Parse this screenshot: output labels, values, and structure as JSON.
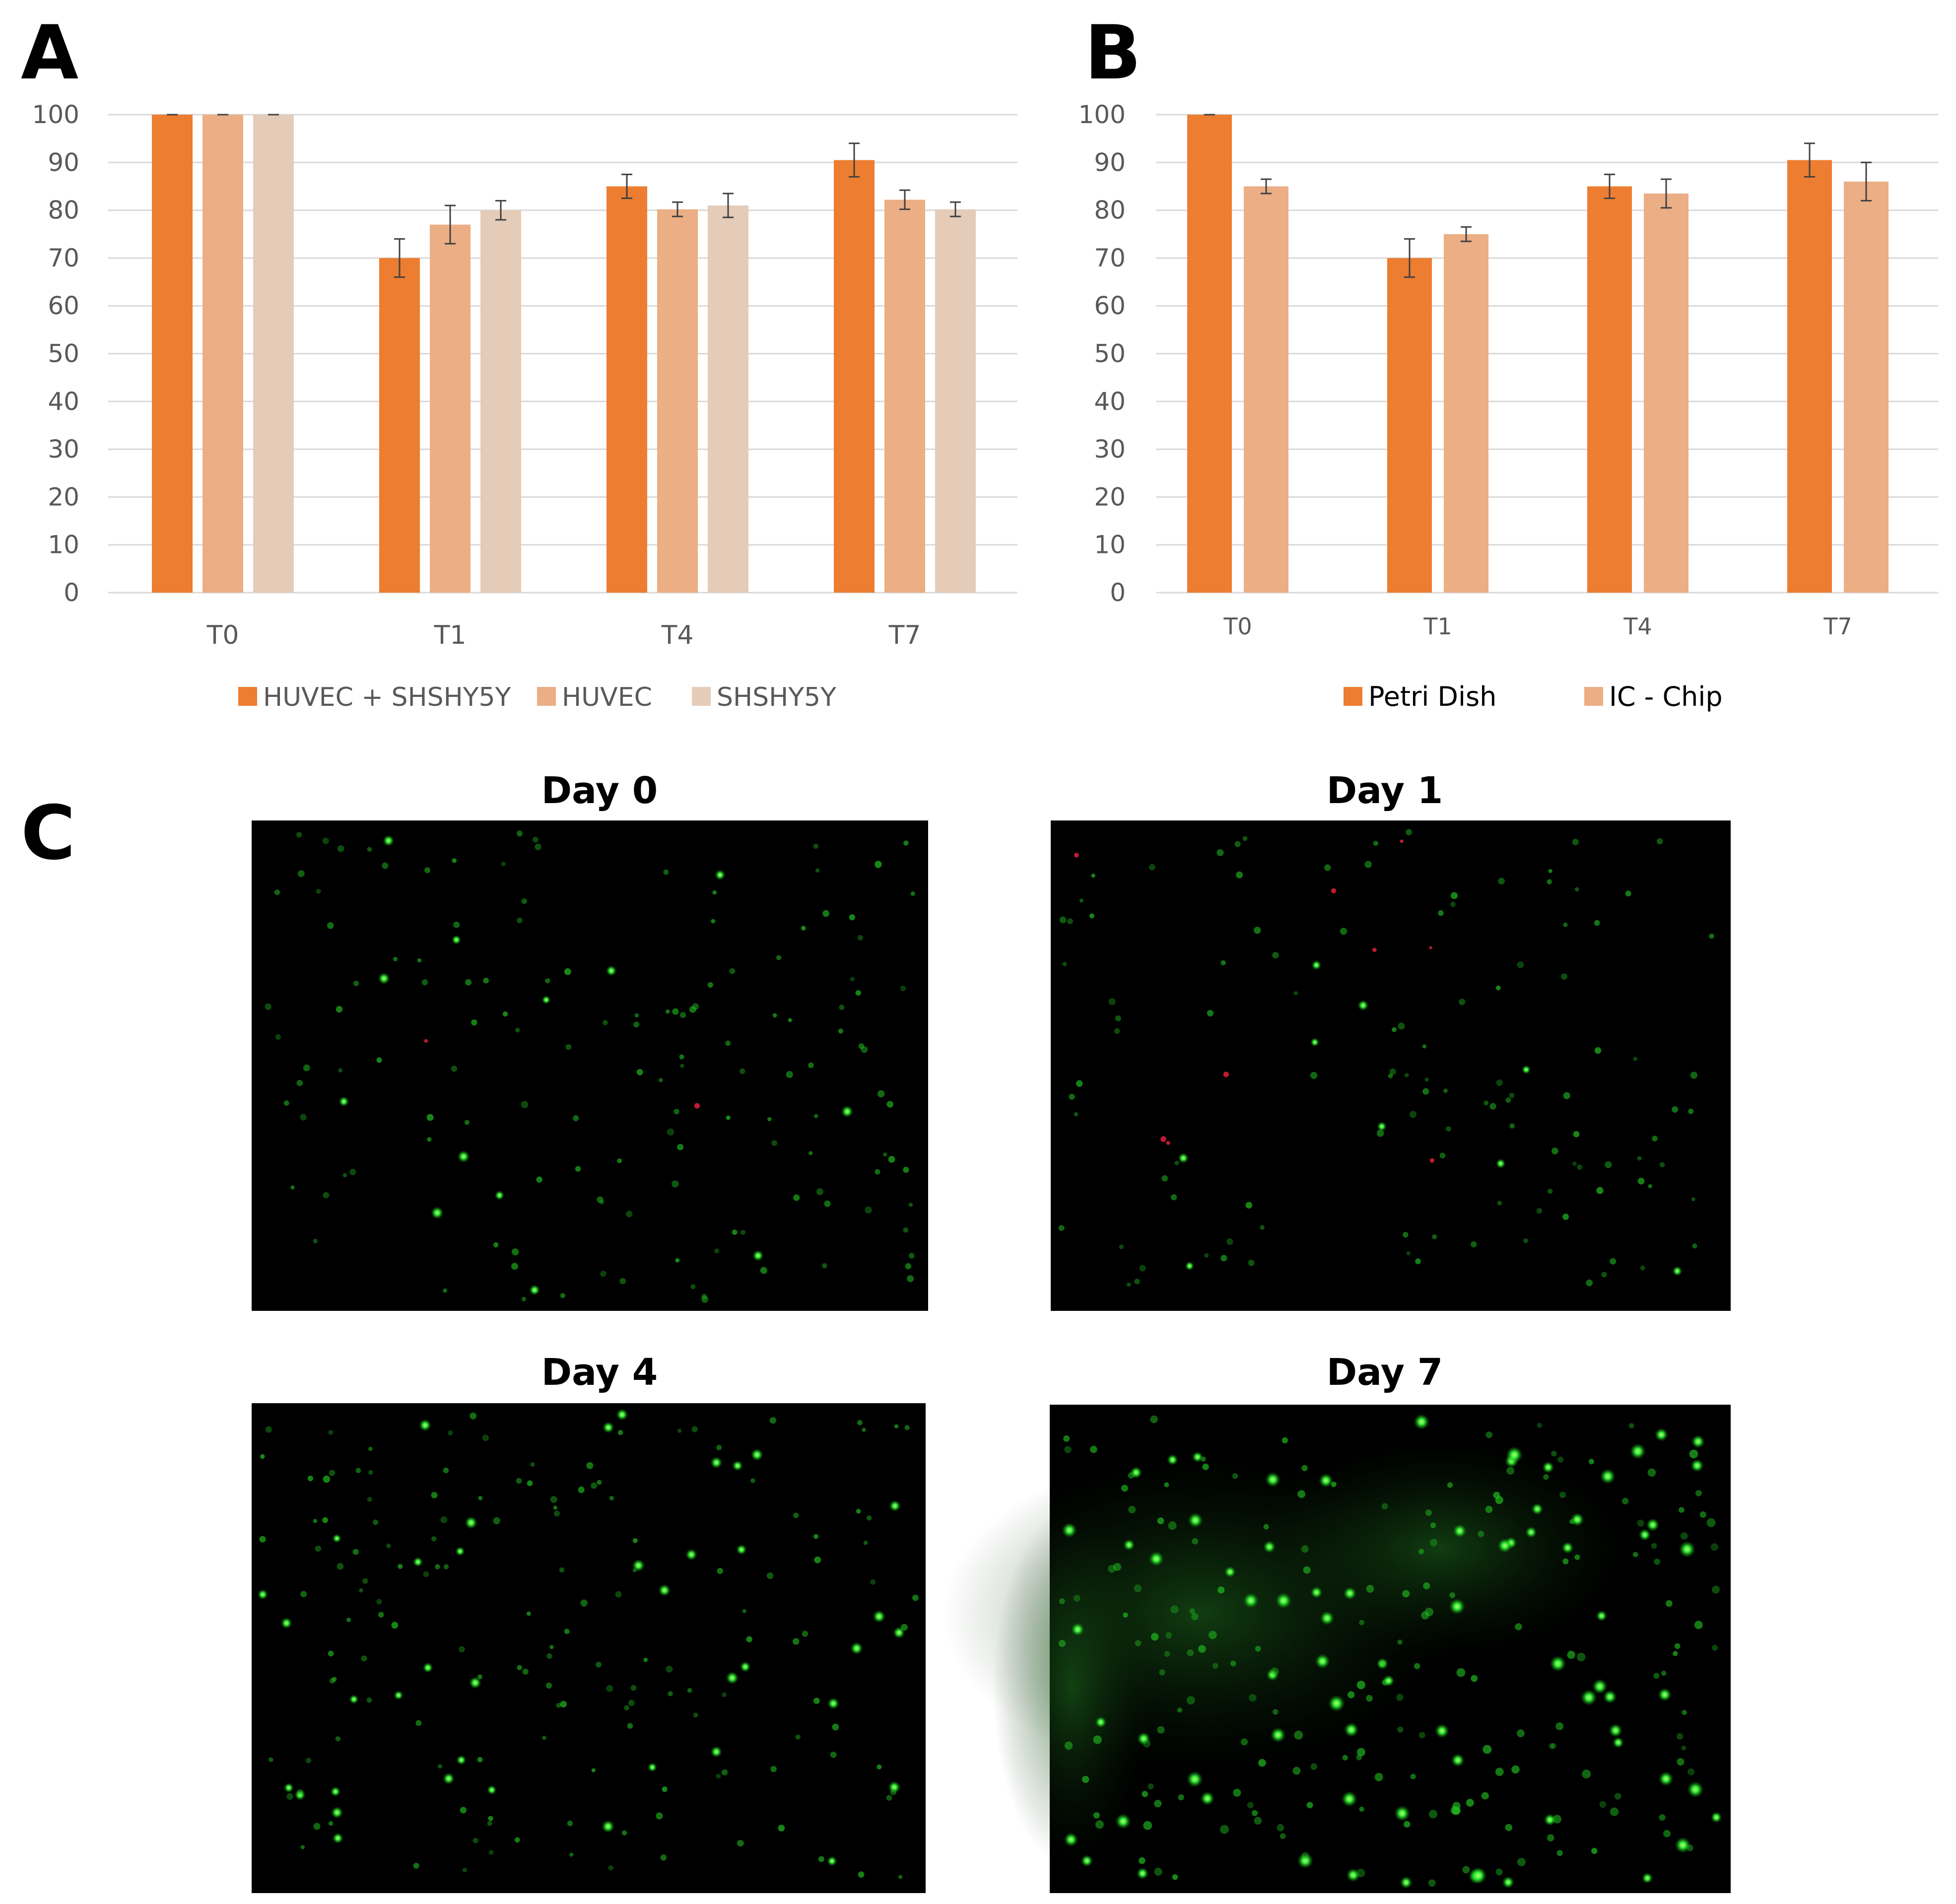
{
  "panels": {
    "a": "A",
    "b": "B",
    "c": "C"
  },
  "chart_data": [
    {
      "type": "bar",
      "panel": "A",
      "categories": [
        "T0",
        "T1",
        "T4",
        "T7"
      ],
      "ylim": [
        0,
        100
      ],
      "yticks": [
        0,
        10,
        20,
        30,
        40,
        50,
        60,
        70,
        80,
        90,
        100
      ],
      "grid": true,
      "legend_position": "bottom",
      "error_bars": true,
      "series": [
        {
          "name": "HUVEC + SHSHY5Y",
          "color": "#ED7D31",
          "values": [
            100,
            70,
            85,
            90.5
          ],
          "errors": [
            0,
            4,
            2.5,
            3.5
          ]
        },
        {
          "name": "HUVEC",
          "color": "#EBAE85",
          "values": [
            100,
            77,
            80.2,
            82.2
          ],
          "errors": [
            0,
            4,
            1.5,
            2
          ]
        },
        {
          "name": "SHSHY5Y",
          "color": "#E4CCB9",
          "values": [
            100,
            80,
            81,
            80.2
          ],
          "errors": [
            0,
            2,
            2.5,
            1.5
          ]
        }
      ]
    },
    {
      "type": "bar",
      "panel": "B",
      "categories": [
        "T0",
        "T1",
        "T4",
        "T7"
      ],
      "ylim": [
        0,
        100
      ],
      "yticks": [
        0,
        10,
        20,
        30,
        40,
        50,
        60,
        70,
        80,
        90,
        100
      ],
      "grid": true,
      "legend_position": "bottom",
      "error_bars": true,
      "series": [
        {
          "name": "Petri Dish",
          "color": "#ED7D31",
          "values": [
            100,
            70,
            85,
            90.5
          ],
          "errors": [
            0,
            4,
            2.5,
            3.5
          ]
        },
        {
          "name": "IC - Chip",
          "color": "#EBAE85",
          "values": [
            85,
            75,
            83.5,
            86
          ],
          "errors": [
            1.5,
            1.5,
            3,
            4
          ]
        }
      ]
    }
  ],
  "micrographs": [
    {
      "title": "Day 0",
      "stain": "green/red fluorescence"
    },
    {
      "title": "Day 1",
      "stain": "green/red fluorescence"
    },
    {
      "title": "Day 4",
      "stain": "green/red fluorescence"
    },
    {
      "title": "Day 7",
      "stain": "green/red fluorescence"
    }
  ],
  "colors": {
    "background": "#ffffff",
    "gridline": "#D9D9D9",
    "axis_text": "#595959",
    "micrograph_bg": "#000000",
    "live_cell": "#2EE62E",
    "dead_cell": "#E0203A"
  }
}
